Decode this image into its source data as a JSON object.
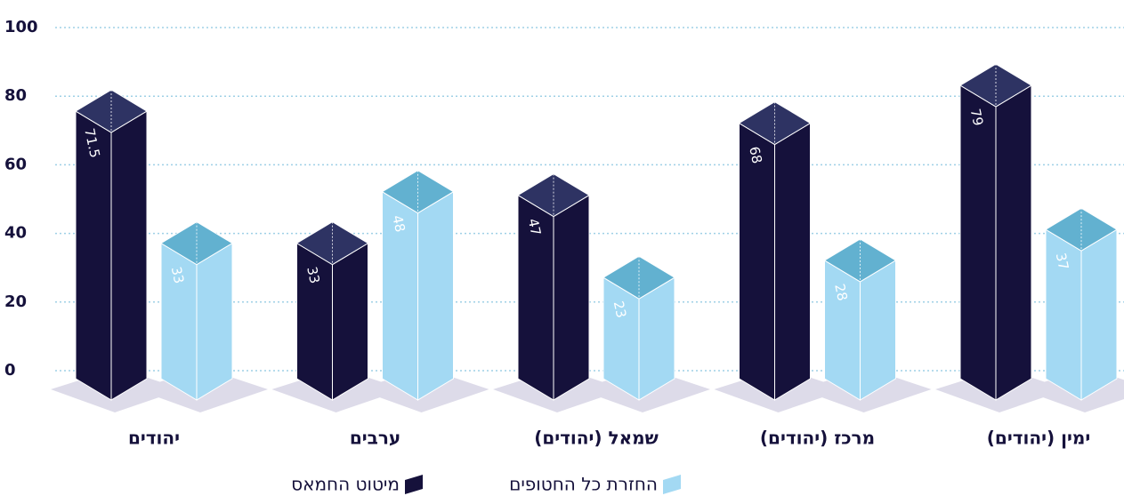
{
  "chart_data": {
    "type": "bar3d",
    "categories": [
      "יהודים",
      "ערבים",
      "שמאל (יהודים)",
      "מרכז (יהודים)",
      "ימין (יהודים)"
    ],
    "series": [
      {
        "name": "מיטוט החמאס",
        "color": "#15113b",
        "top_color": "#2e3363",
        "values": [
          71.5,
          33,
          47,
          68,
          79
        ]
      },
      {
        "name": "החזרת כל החטופים",
        "color": "#a3d9f3",
        "top_color": "#62b1d0",
        "values": [
          33,
          48,
          23,
          28,
          37
        ]
      }
    ],
    "ylim": [
      0,
      100
    ],
    "yticks": [
      0,
      20,
      40,
      60,
      80,
      100
    ],
    "grid": true
  }
}
